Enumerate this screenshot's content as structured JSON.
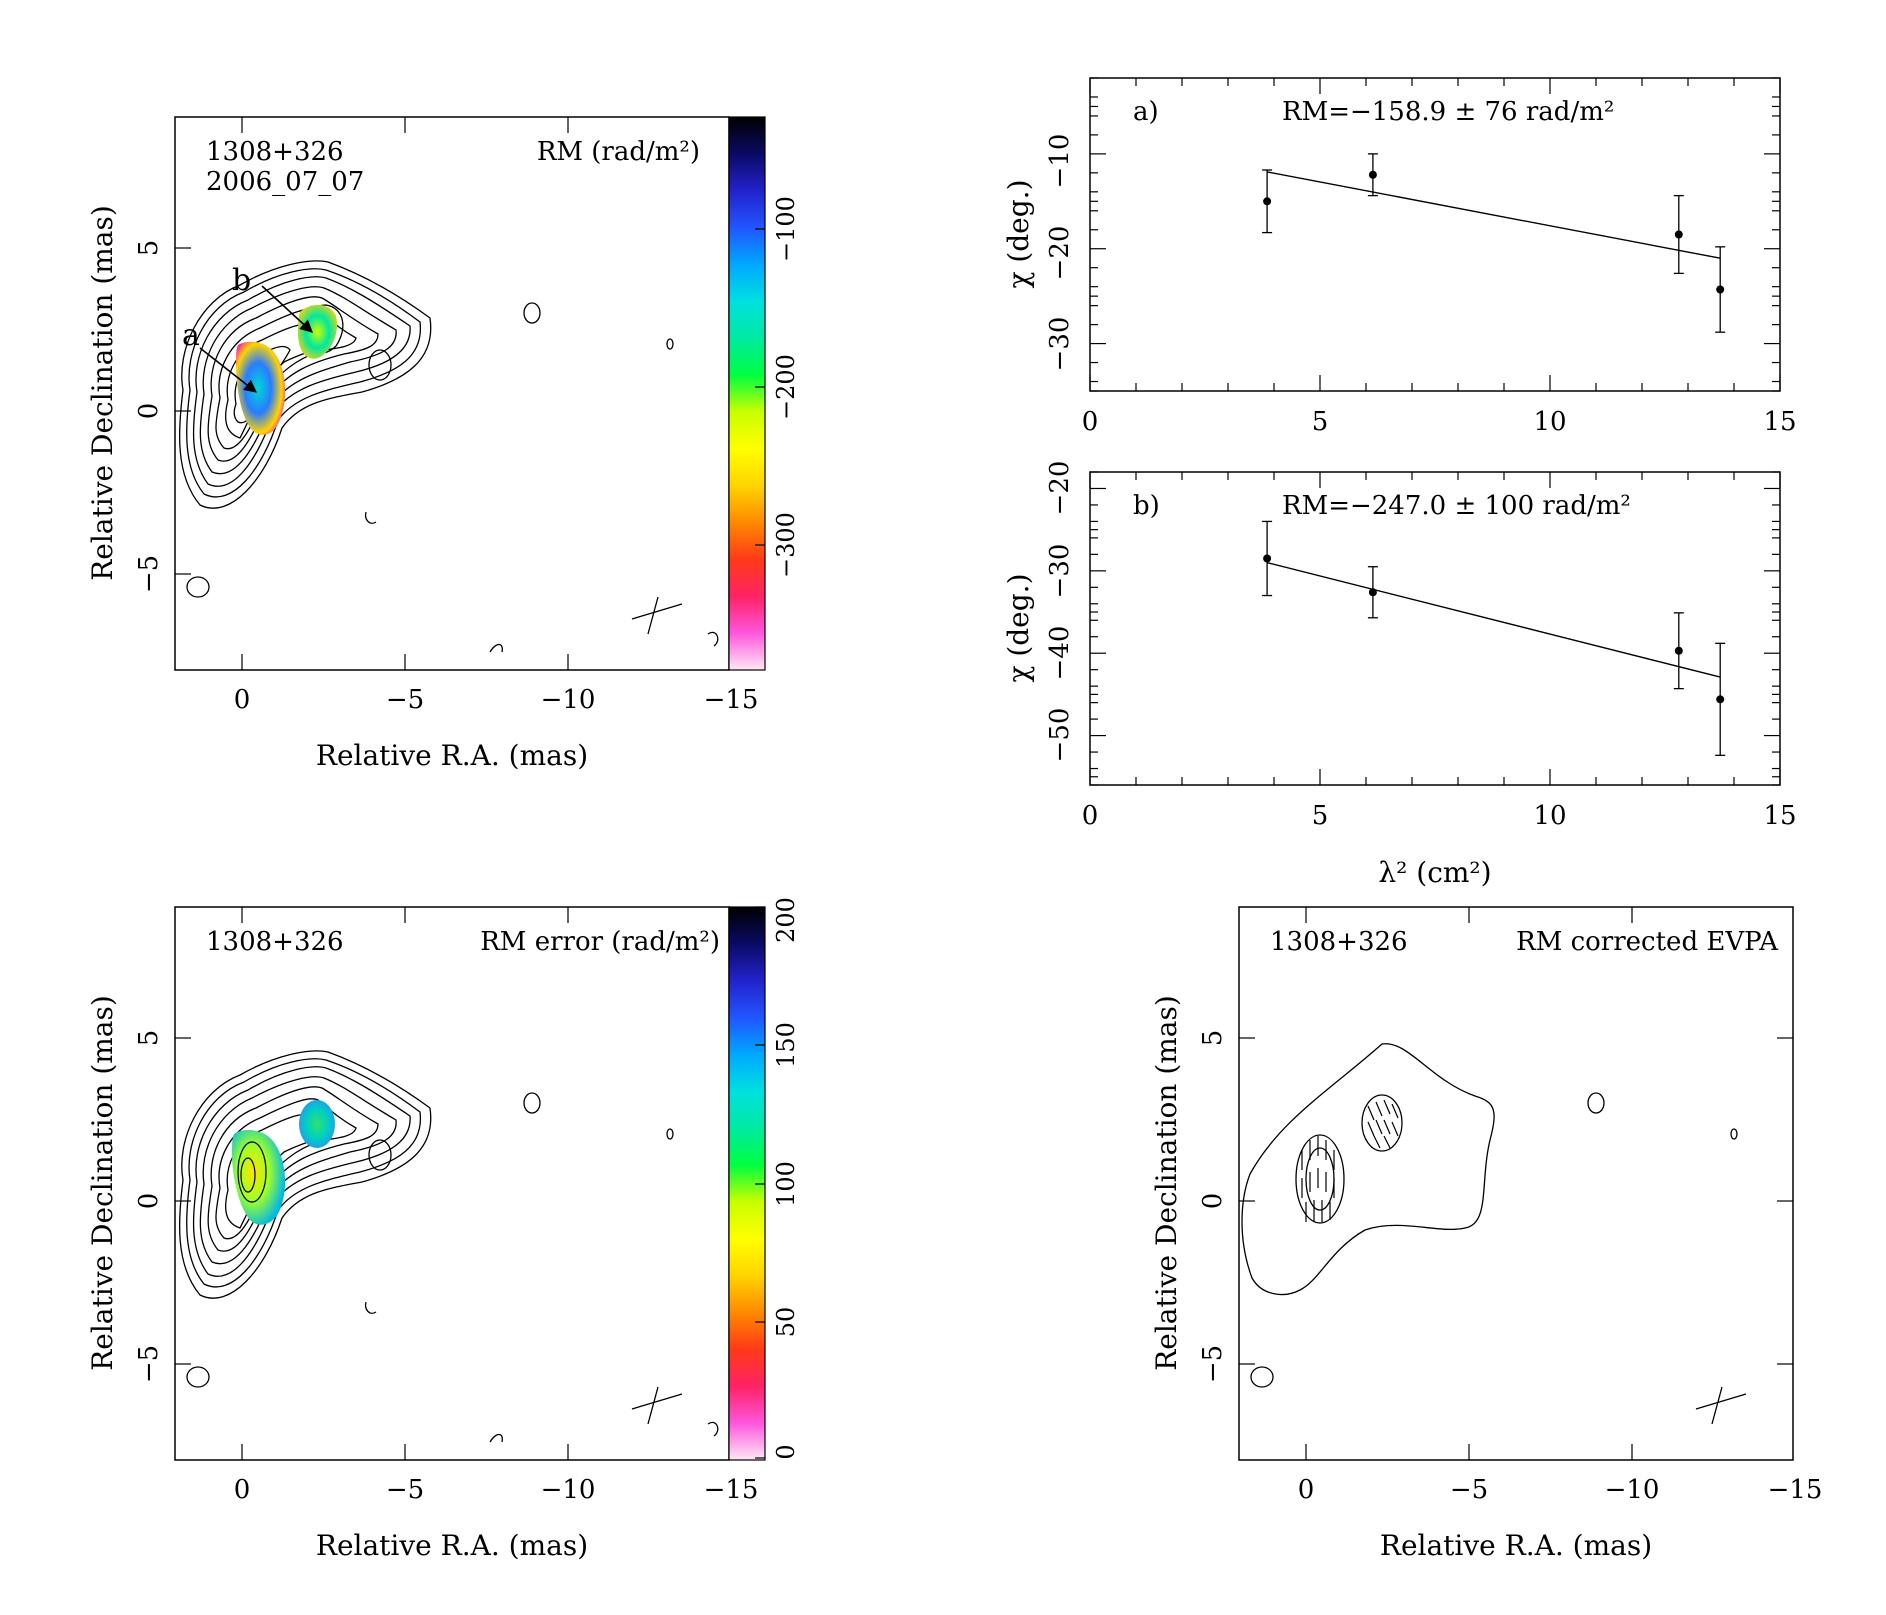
{
  "colors": {
    "ink": "#000000",
    "rm_colormap": [
      "#ffe8f4",
      "#ff55dd",
      "#ff2266",
      "#ff3a18",
      "#ff8a00",
      "#ffd400",
      "#ffff00",
      "#c8ff00",
      "#00ff40",
      "#00eaa0",
      "#00e0e0",
      "#00a8ff",
      "#2255ff",
      "#2222cc",
      "#0a0a66",
      "#000000"
    ]
  },
  "panels": {
    "rm_map": {
      "source": "1308+326",
      "date": "2006_07_07",
      "quantity": "RM (rad/m²)",
      "xlabel": "Relative R.A. (mas)",
      "ylabel": "Relative Declination (mas)",
      "x_ticks": [
        "0",
        "−5",
        "−10",
        "−15"
      ],
      "y_ticks": [
        "−5",
        "0",
        "5"
      ],
      "colorbar_ticks": [
        "−100",
        "−200",
        "−300"
      ],
      "markers": [
        "a",
        "b"
      ]
    },
    "rm_error_map": {
      "source": "1308+326",
      "quantity": "RM error (rad/m²)",
      "xlabel": "Relative R.A. (mas)",
      "ylabel": "Relative Declination (mas)",
      "x_ticks": [
        "0",
        "−5",
        "−10",
        "−15"
      ],
      "y_ticks": [
        "−5",
        "0",
        "5"
      ],
      "colorbar_ticks": [
        "200",
        "150",
        "100",
        "50",
        "0"
      ]
    },
    "evpa_map": {
      "source": "1308+326",
      "quantity": "RM corrected EVPA",
      "xlabel": "Relative R.A. (mas)",
      "ylabel": "Relative Declination (mas)",
      "x_ticks": [
        "0",
        "−5",
        "−10",
        "−15"
      ],
      "y_ticks": [
        "−5",
        "0",
        "5"
      ]
    },
    "fit_a": {
      "tag": "a)",
      "rm_text": "RM=−158.9 ± 76 rad/m²",
      "ylabel": "χ (deg.)",
      "x_ticks": [
        "0",
        "5",
        "10",
        "15"
      ],
      "y_ticks": [
        "−10",
        "−20",
        "−30"
      ]
    },
    "fit_b": {
      "tag": "b)",
      "rm_text": "RM=−247.0 ± 100 rad/m²",
      "ylabel": "χ (deg.)",
      "xlabel": "λ² (cm²)",
      "x_ticks": [
        "0",
        "5",
        "10",
        "15"
      ],
      "y_ticks": [
        "−20",
        "−30",
        "−40",
        "−50"
      ]
    }
  },
  "chart_data": [
    {
      "type": "heatmap",
      "title": "RM (rad/m²)",
      "source": "1308+326",
      "epoch": "2006_07_07",
      "xlabel": "Relative R.A. (mas)",
      "ylabel": "Relative Declination (mas)",
      "xlim": [
        2,
        -15
      ],
      "ylim": [
        -8,
        9
      ],
      "colorbar_range": [
        -390,
        -40
      ],
      "colorbar_ticks": [
        -100,
        -200,
        -300
      ],
      "regions": [
        {
          "label": "a",
          "x": -0.5,
          "y": 0.8,
          "rm": -158.9
        },
        {
          "label": "b",
          "x": -2.4,
          "y": 2.3,
          "rm": -247.0
        }
      ]
    },
    {
      "type": "heatmap",
      "title": "RM error (rad/m²)",
      "source": "1308+326",
      "xlabel": "Relative R.A. (mas)",
      "ylabel": "Relative Declination (mas)",
      "xlim": [
        2,
        -15
      ],
      "ylim": [
        -8,
        9
      ],
      "colorbar_range": [
        0,
        200
      ],
      "colorbar_ticks": [
        0,
        50,
        100,
        150,
        200
      ]
    },
    {
      "type": "scatter",
      "title": "a)",
      "annotation": "RM=−158.9 ± 76 rad/m²",
      "xlabel": "",
      "ylabel": "χ (deg.)",
      "xlim": [
        0,
        15
      ],
      "ylim": [
        -35,
        -2
      ],
      "x": [
        3.85,
        6.15,
        12.8,
        13.7
      ],
      "y": [
        -15.0,
        -12.2,
        -18.5,
        -24.3
      ],
      "yerr": [
        3.3,
        2.2,
        4.1,
        4.5
      ],
      "fit_line": {
        "x": [
          3.85,
          13.7
        ],
        "y": [
          -11.9,
          -21.0
        ]
      }
    },
    {
      "type": "scatter",
      "title": "b)",
      "annotation": "RM=−247.0 ± 100 rad/m²",
      "xlabel": "λ² (cm²)",
      "ylabel": "χ (deg.)",
      "xlim": [
        0,
        15
      ],
      "ylim": [
        -56,
        -18
      ],
      "x": [
        3.85,
        6.15,
        12.8,
        13.7
      ],
      "y": [
        -28.5,
        -32.6,
        -39.7,
        -45.6
      ],
      "yerr": [
        4.5,
        3.1,
        4.6,
        6.8
      ],
      "fit_line": {
        "x": [
          3.85,
          13.7
        ],
        "y": [
          -29.0,
          -42.9
        ]
      }
    },
    {
      "type": "heatmap",
      "title": "RM corrected EVPA",
      "source": "1308+326",
      "xlabel": "Relative R.A. (mas)",
      "ylabel": "Relative Declination (mas)",
      "xlim": [
        2,
        -15
      ],
      "ylim": [
        -8,
        9
      ]
    }
  ]
}
